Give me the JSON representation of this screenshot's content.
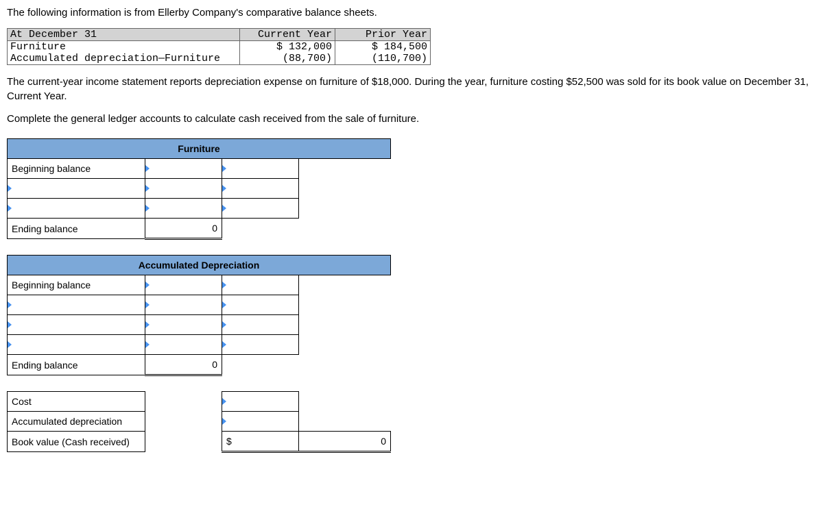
{
  "intro": "The following information is from Ellerby Company's comparative balance sheets.",
  "balance_sheet": {
    "header": {
      "c0": "At December 31",
      "c1": "Current Year",
      "c2": "Prior Year"
    },
    "rows": [
      {
        "label": "Furniture",
        "cy": "$ 132,000",
        "py": "$ 184,500"
      },
      {
        "label": "Accumulated depreciation—Furniture",
        "cy": "(88,700)",
        "py": "(110,700)"
      }
    ]
  },
  "narrative1": "The current-year income statement reports depreciation expense on furniture of $18,000. During the year, furniture costing $52,500 was sold for its book value on December 31, Current Year.",
  "narrative2": "Complete the general ledger accounts to calculate cash received from the sale of furniture.",
  "ledger": {
    "furniture": {
      "title": "Furniture",
      "begin_label": "Beginning balance",
      "end_label": "Ending balance",
      "end_value": "0"
    },
    "accum": {
      "title": "Accumulated Depreciation",
      "begin_label": "Beginning balance",
      "end_label": "Ending balance",
      "end_value": "0"
    },
    "summary": {
      "cost_label": "Cost",
      "ad_label": "Accumulated depreciation",
      "bv_label": "Book value (Cash received)",
      "bv_currency": "$",
      "bv_value": "0"
    }
  },
  "colors": {
    "header_bg": "#d3d3d3",
    "ledger_title_bg": "#7ca8d8",
    "marker": "#4893f0"
  }
}
